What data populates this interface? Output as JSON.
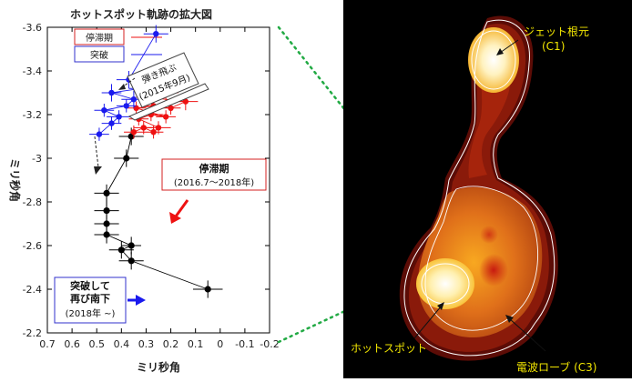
{
  "chart_data": {
    "type": "scatter",
    "title": "ホットスポット軌跡の拡大図",
    "xlabel": "ミリ秒角",
    "ylabel": "ミリ秒角",
    "xlim": [
      0.7,
      -0.2
    ],
    "ylim": [
      -3.6,
      -2.2
    ],
    "x_reversed": true,
    "x_ticks": [
      "0.7",
      "0.6",
      "0.5",
      "0.4",
      "0.3",
      "0.2",
      "0.1",
      "0",
      "-0.1",
      "-0.2"
    ],
    "y_ticks": [
      "-2.2",
      "-2.4",
      "-2.6",
      "-2.8",
      "-3",
      "-3.2",
      "-3.4",
      "-3.6"
    ],
    "legend": {
      "placement": "top-left",
      "entries": [
        "停滞期",
        "突破"
      ]
    },
    "series": [
      {
        "name": "",
        "color": "#000000",
        "points": [
          {
            "x": 0.05,
            "y": -2.4,
            "xerr": 0.06,
            "yerr": 0.04
          },
          {
            "x": 0.36,
            "y": -2.53,
            "xerr": 0.05,
            "yerr": 0.04
          },
          {
            "x": 0.4,
            "y": -2.58,
            "xerr": 0.05,
            "yerr": 0.04
          },
          {
            "x": 0.36,
            "y": -2.6,
            "xerr": 0.04,
            "yerr": 0.04
          },
          {
            "x": 0.46,
            "y": -2.65,
            "xerr": 0.05,
            "yerr": 0.04
          },
          {
            "x": 0.46,
            "y": -2.7,
            "xerr": 0.05,
            "yerr": 0.04
          },
          {
            "x": 0.46,
            "y": -2.76,
            "xerr": 0.05,
            "yerr": 0.04
          },
          {
            "x": 0.46,
            "y": -2.84,
            "xerr": 0.05,
            "yerr": 0.04
          },
          {
            "x": 0.38,
            "y": -3.0,
            "xerr": 0.05,
            "yerr": 0.04
          },
          {
            "x": 0.36,
            "y": -3.1,
            "xerr": 0.05,
            "yerr": 0.04
          }
        ]
      },
      {
        "name": "停滞期",
        "color": "#ee1111",
        "points": [
          {
            "x": 0.35,
            "y": -3.12,
            "xerr": 0.04,
            "yerr": 0.03
          },
          {
            "x": 0.31,
            "y": -3.14,
            "xerr": 0.04,
            "yerr": 0.03
          },
          {
            "x": 0.27,
            "y": -3.12,
            "xerr": 0.04,
            "yerr": 0.03
          },
          {
            "x": 0.25,
            "y": -3.14,
            "xerr": 0.05,
            "yerr": 0.03
          },
          {
            "x": 0.33,
            "y": -3.18,
            "xerr": 0.04,
            "yerr": 0.03
          },
          {
            "x": 0.28,
            "y": -3.2,
            "xerr": 0.05,
            "yerr": 0.03
          },
          {
            "x": 0.22,
            "y": -3.19,
            "xerr": 0.04,
            "yerr": 0.03
          },
          {
            "x": 0.34,
            "y": -3.23,
            "xerr": 0.04,
            "yerr": 0.03
          },
          {
            "x": 0.27,
            "y": -3.24,
            "xerr": 0.05,
            "yerr": 0.04
          },
          {
            "x": 0.2,
            "y": -3.23,
            "xerr": 0.04,
            "yerr": 0.03
          },
          {
            "x": 0.14,
            "y": -3.26,
            "xerr": 0.05,
            "yerr": 0.04
          },
          {
            "x": 0.3,
            "y": -3.28,
            "xerr": 0.04,
            "yerr": 0.04
          },
          {
            "x": 0.22,
            "y": -3.3,
            "xerr": 0.05,
            "yerr": 0.04
          }
        ]
      },
      {
        "name": "突破",
        "color": "#1a1aee",
        "points": [
          {
            "x": 0.49,
            "y": -3.11,
            "xerr": 0.04,
            "yerr": 0.03
          },
          {
            "x": 0.44,
            "y": -3.16,
            "xerr": 0.04,
            "yerr": 0.03
          },
          {
            "x": 0.41,
            "y": -3.19,
            "xerr": 0.05,
            "yerr": 0.03
          },
          {
            "x": 0.47,
            "y": -3.22,
            "xerr": 0.04,
            "yerr": 0.03
          },
          {
            "x": 0.38,
            "y": -3.24,
            "xerr": 0.04,
            "yerr": 0.03
          },
          {
            "x": 0.35,
            "y": -3.27,
            "xerr": 0.05,
            "yerr": 0.04
          },
          {
            "x": 0.44,
            "y": -3.3,
            "xerr": 0.04,
            "yerr": 0.04
          },
          {
            "x": 0.32,
            "y": -3.32,
            "xerr": 0.05,
            "yerr": 0.04
          },
          {
            "x": 0.37,
            "y": -3.36,
            "xerr": 0.05,
            "yerr": 0.04
          },
          {
            "x": 0.26,
            "y": -3.57,
            "xerr": 0.05,
            "yerr": 0.04
          }
        ]
      }
    ],
    "annotations": {
      "jump": [
        "弾き飛ぶ",
        "(2015年9月)"
      ],
      "stagnation": [
        "停滞期",
        "(2016.7～2018年)"
      ],
      "breakthrough": [
        "突破して",
        "再び南下",
        "(2018年 ~)"
      ]
    }
  },
  "image_labels": {
    "jet_base": [
      "ジェット根元",
      "(C1)"
    ],
    "hotspot": "ホットスポット",
    "radio_lobe": "電波ローブ (C3)"
  },
  "colors": {
    "stagnation": "#ee1111",
    "breakthrough": "#1a1aee",
    "connector": "#22aa44",
    "image_label": "#f2e600"
  }
}
